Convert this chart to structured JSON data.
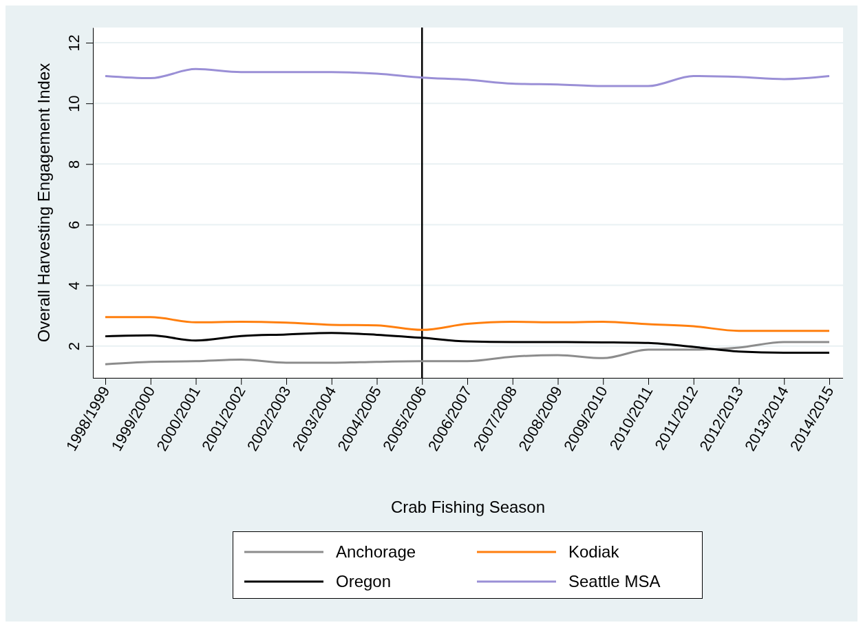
{
  "chart_data": {
    "type": "line",
    "xlabel": "Crab Fishing Season",
    "ylabel": "Overall Harvesting Engagement Index",
    "categories": [
      "1998/1999",
      "1999/2000",
      "2000/2001",
      "2001/2002",
      "2002/2003",
      "2003/2004",
      "2004/2005",
      "2005/2006",
      "2006/2007",
      "2007/2008",
      "2008/2009",
      "2009/2010",
      "2010/2011",
      "2011/2012",
      "2012/2013",
      "2013/2014",
      "2014/2015"
    ],
    "series": [
      {
        "name": "Anchorage",
        "color": "#8c8c8c",
        "values": [
          1.4,
          1.48,
          1.5,
          1.55,
          1.45,
          1.45,
          1.48,
          1.5,
          1.5,
          1.65,
          1.7,
          1.6,
          1.88,
          1.88,
          1.95,
          2.13,
          2.13
        ]
      },
      {
        "name": "Kodiak",
        "color": "#ff7f0e",
        "values": [
          2.95,
          2.95,
          2.78,
          2.8,
          2.77,
          2.7,
          2.68,
          2.53,
          2.73,
          2.8,
          2.78,
          2.8,
          2.72,
          2.65,
          2.5,
          2.5,
          2.5
        ]
      },
      {
        "name": "Oregon",
        "color": "#000000",
        "values": [
          2.32,
          2.35,
          2.18,
          2.33,
          2.38,
          2.43,
          2.37,
          2.27,
          2.15,
          2.13,
          2.13,
          2.12,
          2.1,
          1.97,
          1.82,
          1.78,
          1.78
        ]
      },
      {
        "name": "Seattle MSA",
        "color": "#9a8fd6",
        "values": [
          10.9,
          10.83,
          11.13,
          11.03,
          11.03,
          11.03,
          10.98,
          10.85,
          10.78,
          10.65,
          10.62,
          10.57,
          10.57,
          10.9,
          10.87,
          10.8,
          10.9
        ]
      }
    ],
    "ylim": [
      0.95,
      12.5
    ],
    "yticks": [
      2,
      4,
      6,
      8,
      10,
      12
    ],
    "grid": "y",
    "legend": "bottom",
    "marker": "none",
    "line_style": "solid",
    "ref_lines": [
      {
        "axis": "x",
        "value": "2005/2006",
        "color": "#000000"
      }
    ]
  }
}
